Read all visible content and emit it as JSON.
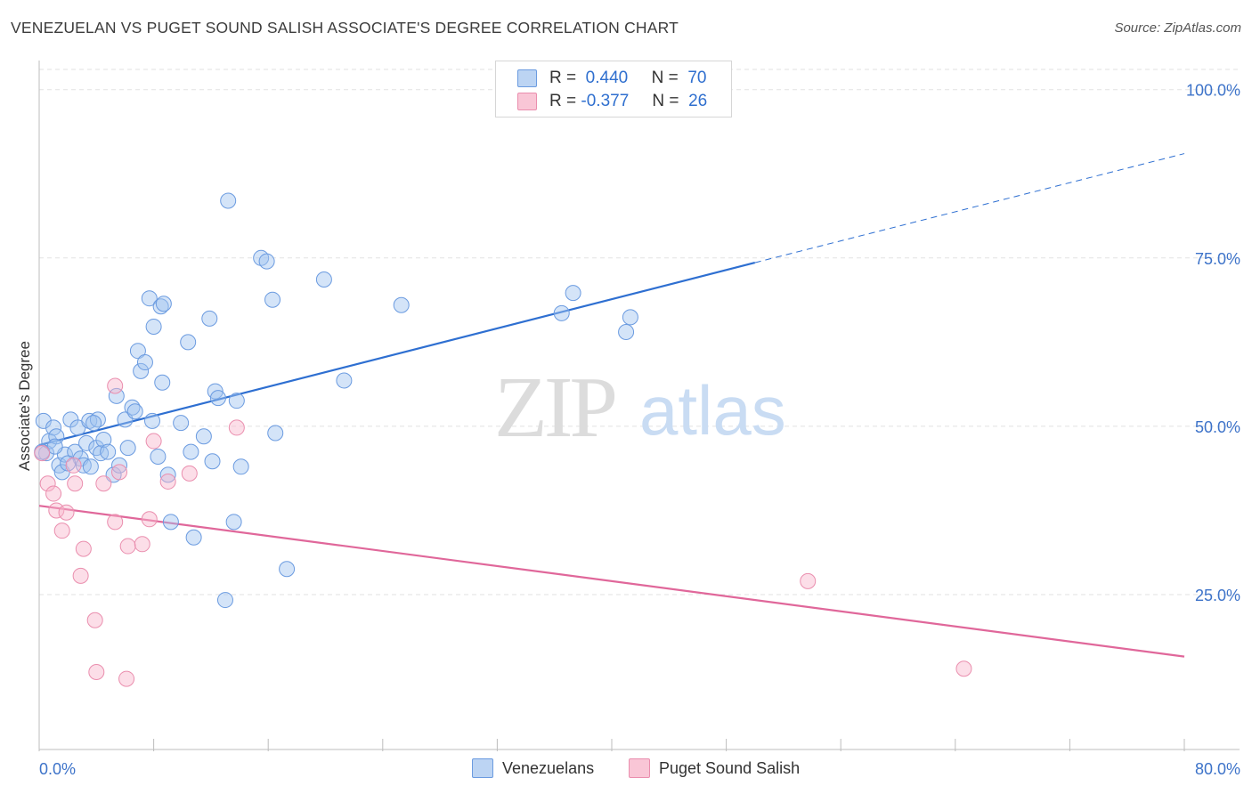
{
  "title": "VENEZUELAN VS PUGET SOUND SALISH ASSOCIATE'S DEGREE CORRELATION CHART",
  "source": "Source: ZipAtlas.com",
  "watermark": {
    "zip": "ZIP",
    "atlas": "atlas"
  },
  "legend": {
    "rows": [
      {
        "r_label": "R =",
        "r_value": "0.440",
        "n_label": "N =",
        "n_value": "70",
        "color": "#6b9be0"
      },
      {
        "r_label": "R =",
        "r_value": "-0.377",
        "n_label": "N =",
        "n_value": "26",
        "color": "#ea8eae"
      }
    ]
  },
  "bottom_legend": [
    {
      "label": "Venezuelans",
      "color": "#6b9be0"
    },
    {
      "label": "Puget Sound Salish",
      "color": "#ea8eae"
    }
  ],
  "chart_data": {
    "type": "scatter",
    "title": "VENEZUELAN VS PUGET SOUND SALISH ASSOCIATE'S DEGREE CORRELATION CHART",
    "xlabel": "",
    "ylabel": "Associate's Degree",
    "xlim": [
      0,
      80
    ],
    "ylim": [
      2,
      103
    ],
    "x_tick_labels": [
      "0.0%",
      "80.0%"
    ],
    "y_ticks": [
      25,
      50,
      75,
      100
    ],
    "y_tick_labels": [
      "25.0%",
      "50.0%",
      "75.0%",
      "100.0%"
    ],
    "grid": true,
    "legend_position": "top-center",
    "series": [
      {
        "name": "Venezuelans",
        "color": "#6b9be0",
        "trend": {
          "x": [
            0,
            50
          ],
          "y": [
            47.2,
            74.3
          ],
          "dashed_to": [
            80,
            90.5
          ]
        },
        "points": [
          [
            0.3,
            50.8
          ],
          [
            0.5,
            46.0
          ],
          [
            0.7,
            47.8
          ],
          [
            1.0,
            49.8
          ],
          [
            1.2,
            48.5
          ],
          [
            1.4,
            44.2
          ],
          [
            1.6,
            43.2
          ],
          [
            1.8,
            45.8
          ],
          [
            2.2,
            51.0
          ],
          [
            2.5,
            46.2
          ],
          [
            2.7,
            49.8
          ],
          [
            2.9,
            45.2
          ],
          [
            3.1,
            44.2
          ],
          [
            3.3,
            47.5
          ],
          [
            3.5,
            50.8
          ],
          [
            3.6,
            44.0
          ],
          [
            4.0,
            46.8
          ],
          [
            4.1,
            51.0
          ],
          [
            4.3,
            46.0
          ],
          [
            4.5,
            48.0
          ],
          [
            4.8,
            46.2
          ],
          [
            5.2,
            42.8
          ],
          [
            5.4,
            54.5
          ],
          [
            5.6,
            44.2
          ],
          [
            6.0,
            51.0
          ],
          [
            6.2,
            46.8
          ],
          [
            6.5,
            52.8
          ],
          [
            6.7,
            52.2
          ],
          [
            6.9,
            61.2
          ],
          [
            7.1,
            58.2
          ],
          [
            7.4,
            59.5
          ],
          [
            7.9,
            50.8
          ],
          [
            7.7,
            69.0
          ],
          [
            8.0,
            64.8
          ],
          [
            8.3,
            45.5
          ],
          [
            8.5,
            67.8
          ],
          [
            8.6,
            56.5
          ],
          [
            8.7,
            68.2
          ],
          [
            9.0,
            42.8
          ],
          [
            9.2,
            35.8
          ],
          [
            9.9,
            50.5
          ],
          [
            10.4,
            62.5
          ],
          [
            10.6,
            46.2
          ],
          [
            10.8,
            33.5
          ],
          [
            11.5,
            48.5
          ],
          [
            11.9,
            66.0
          ],
          [
            12.1,
            44.8
          ],
          [
            12.3,
            55.2
          ],
          [
            12.5,
            54.2
          ],
          [
            13.0,
            24.2
          ],
          [
            13.2,
            83.5
          ],
          [
            13.6,
            35.8
          ],
          [
            13.8,
            53.8
          ],
          [
            14.1,
            44.0
          ],
          [
            15.5,
            75.0
          ],
          [
            15.9,
            74.5
          ],
          [
            16.3,
            68.8
          ],
          [
            16.5,
            49.0
          ],
          [
            17.3,
            28.8
          ],
          [
            19.9,
            71.8
          ],
          [
            21.3,
            56.8
          ],
          [
            25.3,
            68.0
          ],
          [
            36.5,
            66.8
          ],
          [
            37.3,
            69.8
          ],
          [
            41.0,
            64.0
          ],
          [
            41.3,
            66.2
          ],
          [
            0.2,
            46.2
          ],
          [
            2.0,
            44.5
          ],
          [
            1.1,
            47.0
          ],
          [
            3.8,
            50.5
          ]
        ]
      },
      {
        "name": "Puget Sound Salish",
        "color": "#ea8eae",
        "trend": {
          "x": [
            0,
            80
          ],
          "y": [
            38.2,
            15.8
          ]
        },
        "points": [
          [
            0.2,
            46.0
          ],
          [
            0.6,
            41.5
          ],
          [
            1.0,
            40.0
          ],
          [
            1.2,
            37.5
          ],
          [
            1.6,
            34.5
          ],
          [
            1.9,
            37.2
          ],
          [
            2.4,
            44.2
          ],
          [
            2.5,
            41.5
          ],
          [
            2.9,
            27.8
          ],
          [
            3.1,
            31.8
          ],
          [
            3.9,
            21.2
          ],
          [
            4.0,
            13.5
          ],
          [
            4.5,
            41.5
          ],
          [
            5.3,
            56.0
          ],
          [
            5.3,
            35.8
          ],
          [
            5.6,
            43.2
          ],
          [
            6.1,
            12.5
          ],
          [
            6.2,
            32.2
          ],
          [
            7.2,
            32.5
          ],
          [
            7.7,
            36.2
          ],
          [
            8.0,
            47.8
          ],
          [
            9.0,
            41.8
          ],
          [
            10.5,
            43.0
          ],
          [
            13.8,
            49.8
          ],
          [
            53.7,
            27.0
          ],
          [
            64.6,
            14.0
          ]
        ]
      }
    ]
  }
}
